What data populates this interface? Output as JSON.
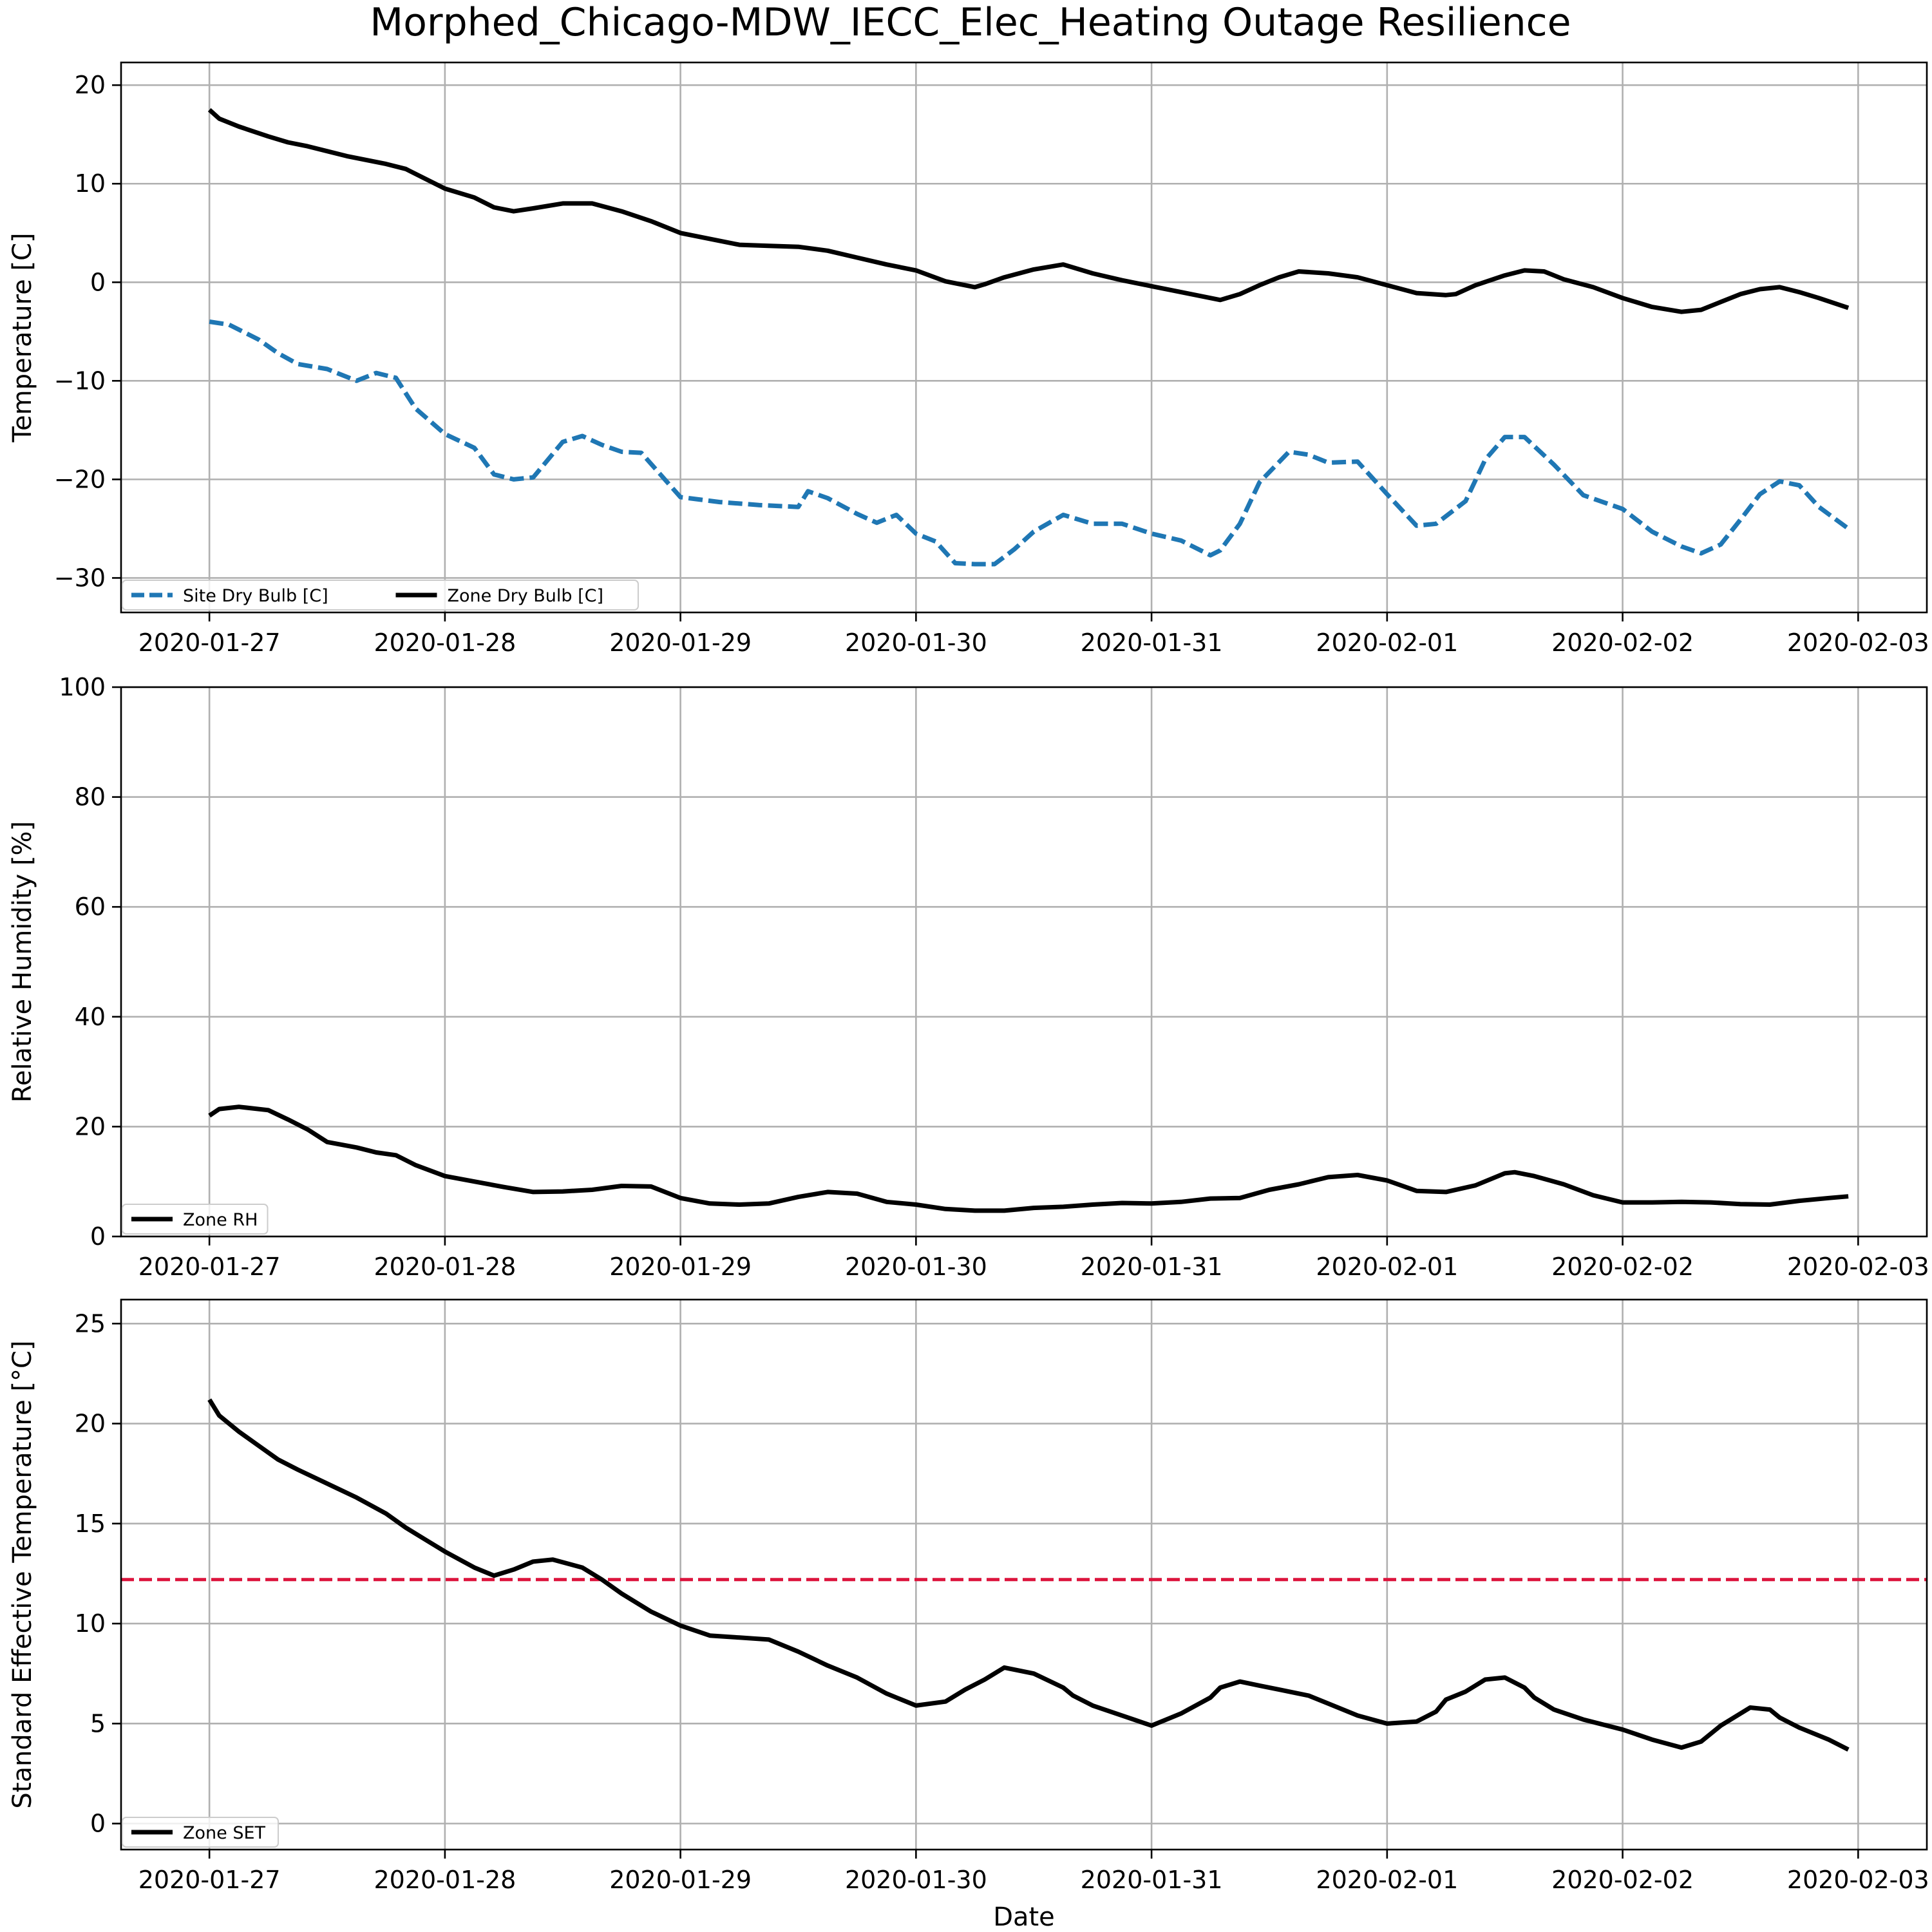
{
  "chart_data": {
    "title": "Morphed_Chicago-MDW_IECC_Elec_Heating Outage Resilience",
    "xlabel": "Date",
    "x_ticks": [
      "2020-01-27",
      "2020-01-28",
      "2020-01-29",
      "2020-01-30",
      "2020-01-31",
      "2020-02-01",
      "2020-02-02",
      "2020-02-03"
    ],
    "x_range": [
      "2020-01-26 15:00",
      "2020-02-03 07:00"
    ],
    "grid": true,
    "panels": [
      {
        "type": "line",
        "ylabel": "Temperature [C]",
        "ylim": [
          -33.5,
          22.3
        ],
        "y_ticks": [
          20,
          10,
          0,
          -10,
          -20,
          -30
        ],
        "y_tick_labels": [
          "20",
          "10",
          "0",
          "−10",
          "−20",
          "−30"
        ],
        "legend_position": "lower-left",
        "legend_columns": 2,
        "series": [
          {
            "name": "Site Dry Bulb [C]",
            "color": "#1f77b4",
            "style": "dashed",
            "x": [
              "2020-01-27 00:00",
              "2020-01-27 02:00",
              "2020-01-27 05:00",
              "2020-01-27 07:00",
              "2020-01-27 09:00",
              "2020-01-27 12:00",
              "2020-01-27 15:00",
              "2020-01-27 17:00",
              "2020-01-27 19:00",
              "2020-01-27 21:00",
              "2020-01-28 00:00",
              "2020-01-28 03:00",
              "2020-01-28 05:00",
              "2020-01-28 07:00",
              "2020-01-28 09:00",
              "2020-01-28 12:00",
              "2020-01-28 14:00",
              "2020-01-28 16:00",
              "2020-01-28 18:00",
              "2020-01-28 20:00",
              "2020-01-29 00:00",
              "2020-01-29 04:00",
              "2020-01-29 08:00",
              "2020-01-29 12:00",
              "2020-01-29 13:00",
              "2020-01-29 15:00",
              "2020-01-29 18:00",
              "2020-01-29 20:00",
              "2020-01-29 22:00",
              "2020-01-30 00:00",
              "2020-01-30 02:00",
              "2020-01-30 04:00",
              "2020-01-30 06:00",
              "2020-01-30 08:00",
              "2020-01-30 10:00",
              "2020-01-30 12:00",
              "2020-01-30 15:00",
              "2020-01-30 18:00",
              "2020-01-30 21:00",
              "2020-01-31 00:00",
              "2020-01-31 03:00",
              "2020-01-31 06:00",
              "2020-01-31 07:00",
              "2020-01-31 09:00",
              "2020-01-31 11:00",
              "2020-01-31 14:00",
              "2020-01-31 16:00",
              "2020-01-31 18:00",
              "2020-01-31 21:00",
              "2020-02-01 00:00",
              "2020-02-01 03:00",
              "2020-02-01 05:00",
              "2020-02-01 08:00",
              "2020-02-01 10:00",
              "2020-02-01 12:00",
              "2020-02-01 14:00",
              "2020-02-01 17:00",
              "2020-02-01 20:00",
              "2020-02-02 00:00",
              "2020-02-02 03:00",
              "2020-02-02 06:00",
              "2020-02-02 08:00",
              "2020-02-02 10:00",
              "2020-02-02 12:00",
              "2020-02-02 14:00",
              "2020-02-02 16:00",
              "2020-02-02 18:00",
              "2020-02-02 20:00",
              "2020-02-02 23:00"
            ],
            "y": [
              -4,
              -4.3,
              -5.8,
              -7.2,
              -8.3,
              -8.8,
              -10.0,
              -9.2,
              -9.7,
              -12.8,
              -15.4,
              -16.8,
              -19.5,
              -20.0,
              -19.8,
              -16.2,
              -15.6,
              -16.5,
              -17.2,
              -17.3,
              -21.8,
              -22.3,
              -22.6,
              -22.8,
              -21.2,
              -21.9,
              -23.5,
              -24.4,
              -23.6,
              -25.5,
              -26.3,
              -28.5,
              -28.6,
              -28.6,
              -27.1,
              -25.3,
              -23.6,
              -24.5,
              -24.5,
              -25.5,
              -26.2,
              -27.7,
              -27.2,
              -24.5,
              -20.3,
              -17.2,
              -17.5,
              -18.3,
              -18.2,
              -21.5,
              -24.7,
              -24.5,
              -22.2,
              -18.0,
              -15.7,
              -15.7,
              -18.5,
              -21.6,
              -23.0,
              -25.3,
              -26.8,
              -27.5,
              -26.6,
              -24.1,
              -21.5,
              -20.2,
              -20.6,
              -22.8,
              -25.0
            ]
          },
          {
            "name": "Zone Dry Bulb [C]",
            "color": "#000000",
            "style": "solid",
            "x": [
              "2020-01-27 00:00",
              "2020-01-27 01:00",
              "2020-01-27 03:00",
              "2020-01-27 06:00",
              "2020-01-27 08:00",
              "2020-01-27 10:00",
              "2020-01-27 14:00",
              "2020-01-27 18:00",
              "2020-01-27 20:00",
              "2020-01-27 22:00",
              "2020-01-28 00:00",
              "2020-01-28 03:00",
              "2020-01-28 05:00",
              "2020-01-28 07:00",
              "2020-01-28 09:00",
              "2020-01-28 12:00",
              "2020-01-28 15:00",
              "2020-01-28 18:00",
              "2020-01-28 21:00",
              "2020-01-29 00:00",
              "2020-01-29 06:00",
              "2020-01-29 09:00",
              "2020-01-29 12:00",
              "2020-01-29 15:00",
              "2020-01-29 18:00",
              "2020-01-29 21:00",
              "2020-01-30 00:00",
              "2020-01-30 03:00",
              "2020-01-30 06:00",
              "2020-01-30 07:00",
              "2020-01-30 09:00",
              "2020-01-30 12:00",
              "2020-01-30 15:00",
              "2020-01-30 18:00",
              "2020-01-30 21:00",
              "2020-01-31 00:00",
              "2020-01-31 03:00",
              "2020-01-31 07:00",
              "2020-01-31 09:00",
              "2020-01-31 11:00",
              "2020-01-31 13:00",
              "2020-01-31 15:00",
              "2020-01-31 18:00",
              "2020-01-31 21:00",
              "2020-02-01 00:00",
              "2020-02-01 03:00",
              "2020-02-01 06:00",
              "2020-02-01 07:00",
              "2020-02-01 09:00",
              "2020-02-01 12:00",
              "2020-02-01 14:00",
              "2020-02-01 16:00",
              "2020-02-01 18:00",
              "2020-02-01 21:00",
              "2020-02-02 00:00",
              "2020-02-02 03:00",
              "2020-02-02 06:00",
              "2020-02-02 08:00",
              "2020-02-02 10:00",
              "2020-02-02 12:00",
              "2020-02-02 14:00",
              "2020-02-02 16:00",
              "2020-02-02 18:00",
              "2020-02-02 20:00",
              "2020-02-02 23:00"
            ],
            "y": [
              17.5,
              16.6,
              15.8,
              14.8,
              14.2,
              13.8,
              12.8,
              12.0,
              11.5,
              10.5,
              9.5,
              8.6,
              7.6,
              7.2,
              7.5,
              8.0,
              8.0,
              7.2,
              6.2,
              5.0,
              3.8,
              3.7,
              3.6,
              3.2,
              2.5,
              1.8,
              1.2,
              0.1,
              -0.5,
              -0.2,
              0.5,
              1.3,
              1.8,
              0.9,
              0.2,
              -0.4,
              -1.0,
              -1.8,
              -1.2,
              -0.3,
              0.5,
              1.1,
              0.9,
              0.5,
              -0.3,
              -1.1,
              -1.3,
              -1.2,
              -0.3,
              0.7,
              1.2,
              1.1,
              0.3,
              -0.5,
              -1.6,
              -2.5,
              -3.0,
              -2.8,
              -2.0,
              -1.2,
              -0.7,
              -0.5,
              -1.0,
              -1.6,
              -2.6
            ]
          }
        ]
      },
      {
        "type": "line",
        "ylabel": "Relative Humidity [%]",
        "ylim": [
          0,
          100
        ],
        "y_ticks": [
          0,
          20,
          40,
          60,
          80,
          100
        ],
        "y_tick_labels": [
          "0",
          "20",
          "40",
          "60",
          "80",
          "100"
        ],
        "legend_position": "lower-left",
        "legend_columns": 1,
        "series": [
          {
            "name": "Zone RH",
            "color": "#000000",
            "style": "solid",
            "x": [
              "2020-01-27 00:00",
              "2020-01-27 01:00",
              "2020-01-27 03:00",
              "2020-01-27 06:00",
              "2020-01-27 08:00",
              "2020-01-27 10:00",
              "2020-01-27 12:00",
              "2020-01-27 15:00",
              "2020-01-27 17:00",
              "2020-01-27 19:00",
              "2020-01-27 21:00",
              "2020-01-28 00:00",
              "2020-01-28 03:00",
              "2020-01-28 06:00",
              "2020-01-28 09:00",
              "2020-01-28 12:00",
              "2020-01-28 15:00",
              "2020-01-28 18:00",
              "2020-01-28 21:00",
              "2020-01-29 00:00",
              "2020-01-29 03:00",
              "2020-01-29 06:00",
              "2020-01-29 09:00",
              "2020-01-29 12:00",
              "2020-01-29 15:00",
              "2020-01-29 18:00",
              "2020-01-29 21:00",
              "2020-01-30 00:00",
              "2020-01-30 03:00",
              "2020-01-30 06:00",
              "2020-01-30 09:00",
              "2020-01-30 12:00",
              "2020-01-30 15:00",
              "2020-01-30 18:00",
              "2020-01-30 21:00",
              "2020-01-31 00:00",
              "2020-01-31 03:00",
              "2020-01-31 06:00",
              "2020-01-31 09:00",
              "2020-01-31 12:00",
              "2020-01-31 15:00",
              "2020-01-31 18:00",
              "2020-01-31 21:00",
              "2020-02-01 00:00",
              "2020-02-01 03:00",
              "2020-02-01 06:00",
              "2020-02-01 09:00",
              "2020-02-01 12:00",
              "2020-02-01 13:00",
              "2020-02-01 15:00",
              "2020-02-01 18:00",
              "2020-02-01 21:00",
              "2020-02-02 00:00",
              "2020-02-02 03:00",
              "2020-02-02 06:00",
              "2020-02-02 09:00",
              "2020-02-02 12:00",
              "2020-02-02 15:00",
              "2020-02-02 18:00",
              "2020-02-02 21:00",
              "2020-02-02 23:00"
            ],
            "y": [
              22,
              23.2,
              23.6,
              23.0,
              21.3,
              19.5,
              17.2,
              16.2,
              15.3,
              14.8,
              13.0,
              11.0,
              10.0,
              9.0,
              8.1,
              8.2,
              8.5,
              9.2,
              9.1,
              7.0,
              6.0,
              5.8,
              6.0,
              7.2,
              8.1,
              7.8,
              6.3,
              5.8,
              5.0,
              4.7,
              4.7,
              5.2,
              5.4,
              5.8,
              6.1,
              6.0,
              6.3,
              6.9,
              7.0,
              8.5,
              9.5,
              10.8,
              11.2,
              10.2,
              8.3,
              8.1,
              9.3,
              11.5,
              11.7,
              11.0,
              9.5,
              7.5,
              6.2,
              6.2,
              6.3,
              6.2,
              5.9,
              5.8,
              6.5,
              7.0,
              7.3
            ]
          }
        ]
      },
      {
        "type": "line",
        "ylabel": "Standard Effective Temperature [°C]",
        "ylim": [
          -1.3,
          26.2
        ],
        "y_ticks": [
          0,
          5,
          10,
          15,
          20,
          25
        ],
        "y_tick_labels": [
          "0",
          "5",
          "10",
          "15",
          "20",
          "25"
        ],
        "legend_position": "lower-left",
        "legend_columns": 1,
        "reference_line": {
          "y": 12.2,
          "color": "#dc143c",
          "style": "dashed"
        },
        "series": [
          {
            "name": "Zone SET",
            "color": "#000000",
            "style": "solid",
            "x": [
              "2020-01-27 00:00",
              "2020-01-27 01:00",
              "2020-01-27 03:00",
              "2020-01-27 05:00",
              "2020-01-27 07:00",
              "2020-01-27 09:00",
              "2020-01-27 12:00",
              "2020-01-27 15:00",
              "2020-01-27 18:00",
              "2020-01-27 20:00",
              "2020-01-27 22:00",
              "2020-01-28 00:00",
              "2020-01-28 03:00",
              "2020-01-28 05:00",
              "2020-01-28 07:00",
              "2020-01-28 09:00",
              "2020-01-28 11:00",
              "2020-01-28 14:00",
              "2020-01-28 16:00",
              "2020-01-28 18:00",
              "2020-01-28 21:00",
              "2020-01-29 00:00",
              "2020-01-29 03:00",
              "2020-01-29 06:00",
              "2020-01-29 09:00",
              "2020-01-29 12:00",
              "2020-01-29 15:00",
              "2020-01-29 18:00",
              "2020-01-29 21:00",
              "2020-01-30 00:00",
              "2020-01-30 03:00",
              "2020-01-30 05:00",
              "2020-01-30 07:00",
              "2020-01-30 09:00",
              "2020-01-30 12:00",
              "2020-01-30 15:00",
              "2020-01-30 16:00",
              "2020-01-30 18:00",
              "2020-01-30 21:00",
              "2020-01-31 00:00",
              "2020-01-31 03:00",
              "2020-01-31 06:00",
              "2020-01-31 07:00",
              "2020-01-31 09:00",
              "2020-01-31 11:00",
              "2020-01-31 13:00",
              "2020-01-31 16:00",
              "2020-01-31 18:00",
              "2020-01-31 21:00",
              "2020-02-01 00:00",
              "2020-02-01 03:00",
              "2020-02-01 05:00",
              "2020-02-01 06:00",
              "2020-02-01 08:00",
              "2020-02-01 10:00",
              "2020-02-01 12:00",
              "2020-02-01 14:00",
              "2020-02-01 15:00",
              "2020-02-01 17:00",
              "2020-02-01 20:00",
              "2020-02-02 00:00",
              "2020-02-02 03:00",
              "2020-02-02 06:00",
              "2020-02-02 08:00",
              "2020-02-02 10:00",
              "2020-02-02 13:00",
              "2020-02-02 15:00",
              "2020-02-02 16:00",
              "2020-02-02 18:00",
              "2020-02-02 21:00",
              "2020-02-02 23:00"
            ],
            "y": [
              21.2,
              20.4,
              19.6,
              18.9,
              18.2,
              17.7,
              17.0,
              16.3,
              15.5,
              14.8,
              14.2,
              13.6,
              12.8,
              12.4,
              12.7,
              13.1,
              13.2,
              12.8,
              12.2,
              11.5,
              10.6,
              9.9,
              9.4,
              9.3,
              9.2,
              8.6,
              7.9,
              7.3,
              6.5,
              5.9,
              6.1,
              6.7,
              7.2,
              7.8,
              7.5,
              6.8,
              6.4,
              5.9,
              5.4,
              4.9,
              5.5,
              6.3,
              6.8,
              7.1,
              6.9,
              6.7,
              6.4,
              6.0,
              5.4,
              5.0,
              5.1,
              5.6,
              6.2,
              6.6,
              7.2,
              7.3,
              6.8,
              6.3,
              5.7,
              5.2,
              4.7,
              4.2,
              3.8,
              4.1,
              4.9,
              5.8,
              5.7,
              5.3,
              4.8,
              4.2,
              3.7
            ]
          }
        ]
      }
    ]
  }
}
